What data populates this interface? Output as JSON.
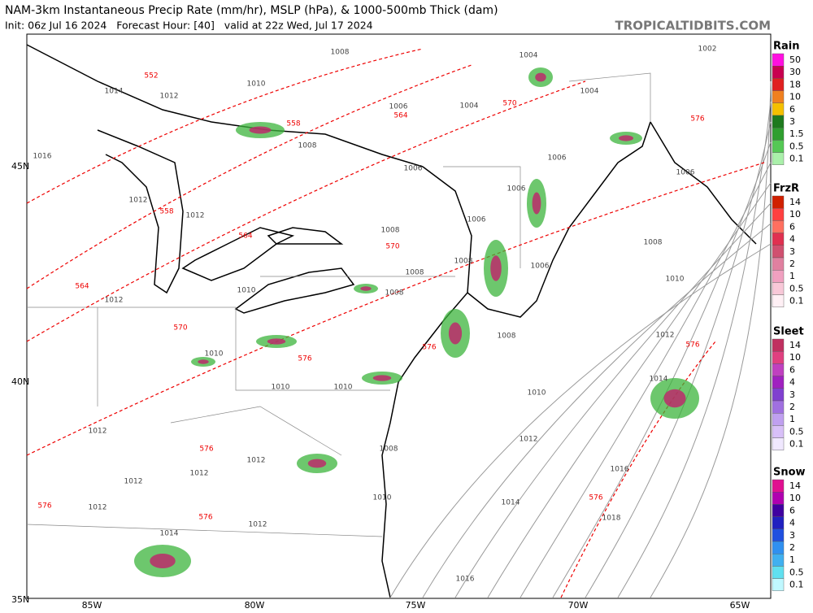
{
  "header": {
    "title": "NAM-3km Instantaneous Precip Rate (mm/hr), MSLP (hPa), & 1000-500mb Thick (dam)",
    "subtitle": "Init: 06z Jul 16 2024   Forecast Hour: [40]   valid at 22z Wed, Jul 17 2024",
    "source": "TROPICALTIDBITS.COM"
  },
  "map": {
    "lat_labels": [
      "45N",
      "40N",
      "35N"
    ],
    "lon_labels": [
      "85W",
      "80W",
      "75W",
      "70W",
      "65W"
    ],
    "isobar_labels": [
      1014,
      1012,
      1010,
      1008,
      1004,
      1002,
      1006,
      1004,
      1004,
      1016,
      1008,
      1006,
      1006,
      1006,
      1012,
      1012,
      1006,
      1006,
      1008,
      1008,
      1006,
      1008,
      1008,
      1010,
      1008,
      1010,
      1012,
      1008,
      1012,
      1010,
      1014,
      1010,
      1010,
      1010,
      1012,
      1012,
      1008,
      1012,
      1016,
      1012,
      1012,
      1010,
      1014,
      1012,
      1018,
      1012,
      1014,
      1016
    ],
    "thickness_labels": [
      552,
      558,
      564,
      570,
      576,
      558,
      564,
      570,
      564,
      570,
      576,
      576,
      576,
      576,
      576,
      576,
      576
    ]
  },
  "legend": [
    {
      "title": "Rain",
      "levels": [
        50,
        30,
        18,
        10,
        6,
        3,
        1.5,
        0.5,
        0.1
      ],
      "colors": [
        "#ff10e0",
        "#c80050",
        "#e02020",
        "#f08020",
        "#f5c000",
        "#1e7a1e",
        "#2f9f2f",
        "#55c855",
        "#aaf0aa"
      ]
    },
    {
      "title": "FrzR",
      "levels": [
        14,
        10,
        6,
        4,
        3,
        2,
        1,
        0.5,
        0.1
      ],
      "colors": [
        "#d02000",
        "#ff4040",
        "#ff7060",
        "#e03050",
        "#d05070",
        "#e080a0",
        "#f0a0c0",
        "#f8c8d8",
        "#fff0f5"
      ]
    },
    {
      "title": "Sleet",
      "levels": [
        14,
        10,
        6,
        4,
        3,
        2,
        1,
        0.5,
        0.1
      ],
      "colors": [
        "#c03060",
        "#e04080",
        "#c040c0",
        "#a020c0",
        "#8040d0",
        "#a070e0",
        "#c0a0f0",
        "#d8c0f8",
        "#f0e8ff"
      ]
    },
    {
      "title": "Snow",
      "levels": [
        14,
        10,
        6,
        4,
        3,
        2,
        1,
        0.5,
        0.1
      ],
      "colors": [
        "#e01090",
        "#b000b0",
        "#4000a0",
        "#2020c0",
        "#2050e0",
        "#3090f0",
        "#40b0f0",
        "#60e0f0",
        "#c0f8ff"
      ]
    }
  ]
}
